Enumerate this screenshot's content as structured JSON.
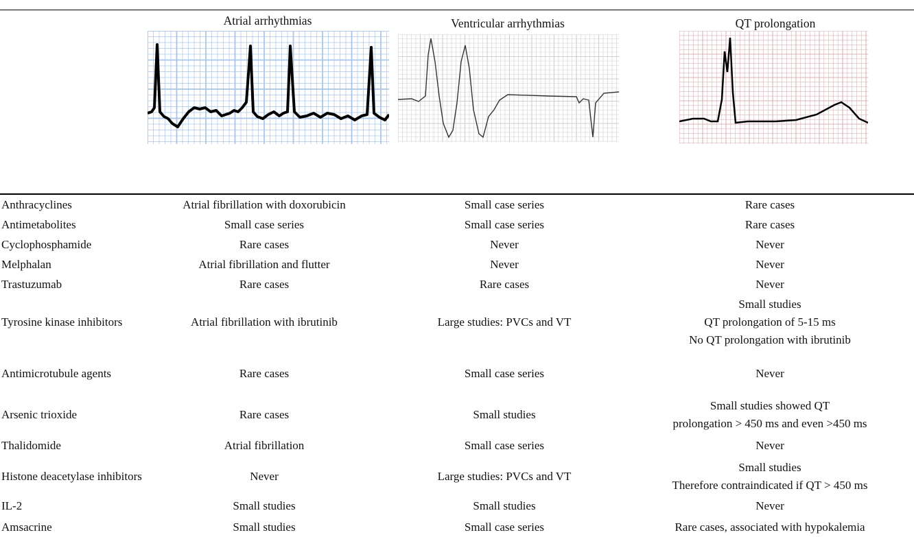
{
  "table": {
    "columns": [
      "Atrial arrhythmias",
      "Ventricular arrhythmias",
      "QT prolongation"
    ],
    "rows": [
      {
        "drug": "Anthracyclines",
        "cells": [
          "Atrial fibrillation with doxorubicin",
          "Small case series",
          "Rare cases"
        ]
      },
      {
        "drug": "Antimetabolites",
        "cells": [
          "Small case series",
          "Small case series",
          "Rare cases"
        ]
      },
      {
        "drug": "Cyclophosphamide",
        "cells": [
          "Rare cases",
          "Never",
          "Never"
        ]
      },
      {
        "drug": "Melphalan",
        "cells": [
          "Atrial fibrillation and flutter",
          "Never",
          "Never"
        ]
      },
      {
        "drug": "Trastuzumab",
        "cells": [
          "Rare cases",
          "Rare cases",
          "Never"
        ]
      },
      {
        "drug": "Tyrosine kinase inhibitors",
        "cells": [
          "Atrial fibrillation with ibrutinib",
          "Large studies: PVCs and VT",
          [
            "Small studies",
            "QT prolongation of 5-15 ms",
            "No QT prolongation with ibrutinib"
          ]
        ]
      },
      {
        "drug": "Antimicrotubule agents",
        "cells": [
          "Rare cases",
          "Small case series",
          "Never"
        ]
      },
      {
        "drug": "Arsenic trioxide",
        "cells": [
          "Rare cases",
          "Small studies",
          [
            "Small studies showed QT",
            "prolongation > 450 ms and even >450 ms"
          ]
        ]
      },
      {
        "drug": "Thalidomide",
        "cells": [
          "Atrial fibrillation",
          "Small case series",
          "Never"
        ]
      },
      {
        "drug": "Histone deacetylase inhibitors",
        "cells": [
          "Never",
          "Large studies: PVCs and VT",
          [
            "Small studies",
            "Therefore contraindicated if QT > 450 ms"
          ]
        ]
      },
      {
        "drug": "IL-2",
        "cells": [
          "Small studies",
          "Small studies",
          "Never"
        ]
      },
      {
        "drug": "Amsacrine",
        "cells": [
          "Small studies",
          "Small case series",
          "Rare cases, associated with hypokalemia"
        ]
      }
    ]
  }
}
